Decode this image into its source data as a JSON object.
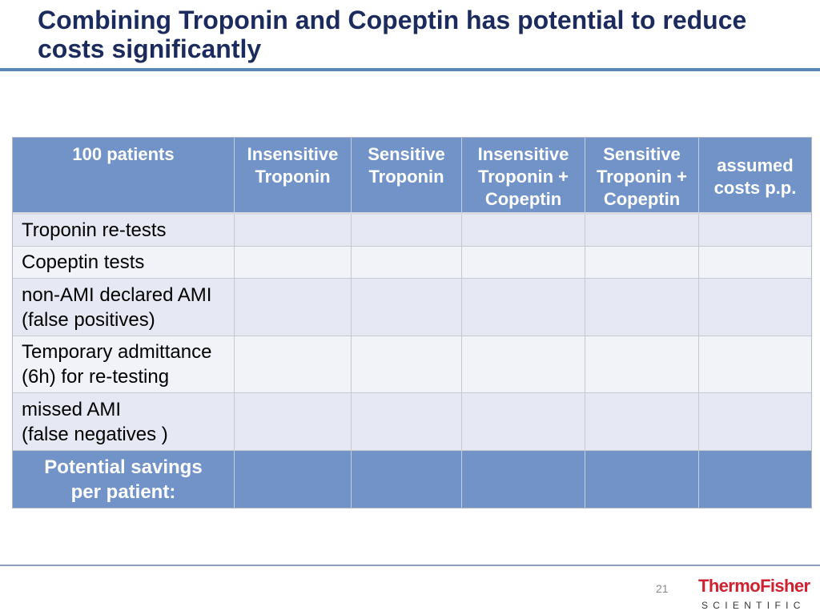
{
  "slide": {
    "title": "Combining Troponin and Copeptin has potential to reduce costs significantly",
    "page_number": "21"
  },
  "table": {
    "columns": [
      "100 patients",
      "Insensitive Troponin",
      "Sensitive Troponin",
      "Insensitive Troponin + Copeptin",
      "Sensitive Troponin + Copeptin",
      "assumed costs p.p."
    ],
    "rows": [
      {
        "label": "Troponin re-tests"
      },
      {
        "label": "Copeptin tests"
      },
      {
        "label": "non-AMI declared AMI\n(false positives)"
      },
      {
        "label": "Temporary admittance\n(6h) for re-testing"
      },
      {
        "label": "missed AMI\n(false negatives )"
      }
    ],
    "footer_label": "Potential savings\nper patient:"
  },
  "logo": {
    "wordmark": "ThermoFisher",
    "tagline": "SCIENTIFIC"
  },
  "theme": {
    "title_color": "#1c2b5d",
    "rule_color": "#5b87b7",
    "header_bg": "#7193c8",
    "band_dark": "#e6e9f3",
    "band_light": "#f2f3f8",
    "brand_red": "#cf2230"
  }
}
